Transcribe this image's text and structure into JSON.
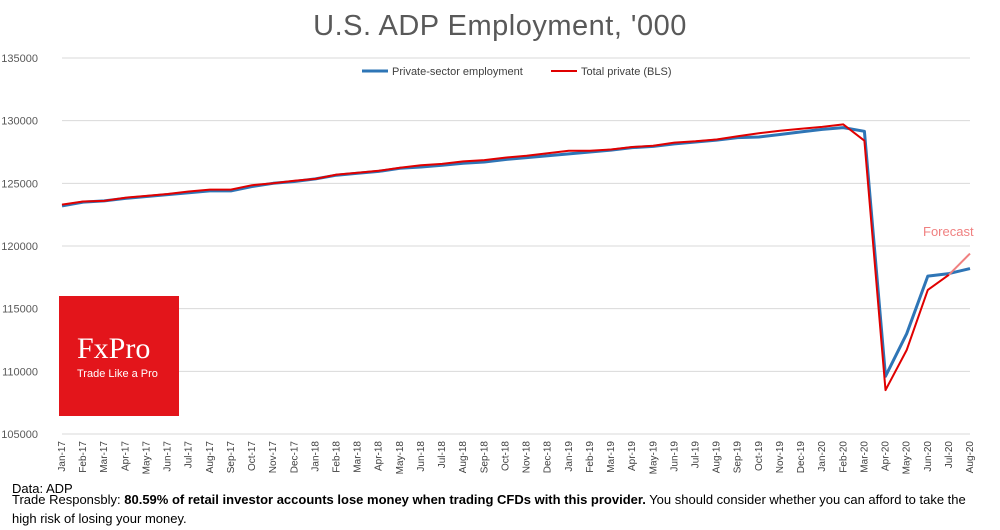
{
  "chart_data": {
    "type": "line",
    "title": "U.S. ADP Employment, '000",
    "categories": [
      "Jan-17",
      "Feb-17",
      "Mar-17",
      "Apr-17",
      "May-17",
      "Jun-17",
      "Jul-17",
      "Aug-17",
      "Sep-17",
      "Oct-17",
      "Nov-17",
      "Dec-17",
      "Jan-18",
      "Feb-18",
      "Mar-18",
      "Apr-18",
      "May-18",
      "Jun-18",
      "Jul-18",
      "Aug-18",
      "Sep-18",
      "Oct-18",
      "Nov-18",
      "Dec-18",
      "Jan-19",
      "Feb-19",
      "Mar-19",
      "Apr-19",
      "May-19",
      "Jun-19",
      "Jul-19",
      "Aug-19",
      "Sep-19",
      "Oct-19",
      "Nov-19",
      "Dec-19",
      "Jan-20",
      "Feb-20",
      "Mar-20",
      "Apr-20",
      "May-20",
      "Jun-20",
      "Jul-20",
      "Aug-20"
    ],
    "ylim": [
      105000,
      135000
    ],
    "yticks": [
      "105000",
      "110000",
      "115000",
      "120000",
      "125000",
      "130000",
      "135000"
    ],
    "grid": true,
    "legend_position": "top",
    "series": [
      {
        "name": "Private-sector employment",
        "color": "#2e75b6",
        "values": [
          123200,
          123500,
          123600,
          123800,
          123950,
          124100,
          124250,
          124400,
          124400,
          124750,
          125000,
          125150,
          125350,
          125650,
          125800,
          125950,
          126200,
          126300,
          126450,
          126600,
          126700,
          126900,
          127050,
          127200,
          127350,
          127500,
          127650,
          127850,
          127950,
          128150,
          128300,
          128450,
          128650,
          128700,
          128900,
          129100,
          129300,
          129450,
          129150,
          109600,
          113000,
          117600,
          117800,
          118200
        ]
      },
      {
        "name": "Total private (BLS)",
        "color": "#e00000",
        "values": [
          123300,
          123550,
          123600,
          123850,
          124000,
          124150,
          124350,
          124500,
          124500,
          124850,
          125000,
          125200,
          125350,
          125700,
          125850,
          126000,
          126250,
          126450,
          126550,
          126750,
          126850,
          127050,
          127200,
          127400,
          127600,
          127600,
          127700,
          127900,
          128000,
          128250,
          128350,
          128500,
          128750,
          129000,
          129200,
          129350,
          129500,
          129700,
          128400,
          108500,
          111700,
          116500,
          117700,
          null
        ]
      }
    ],
    "forecast": {
      "color": "#f08080",
      "from_index": 42,
      "to_index": 43,
      "values": [
        117700,
        119400
      ]
    },
    "annotations": [
      {
        "text": "Forecast"
      }
    ]
  },
  "logo": {
    "name": "FxPro",
    "tagline": "Trade Like a Pro",
    "color": "#e3151b"
  },
  "source": "Data: ADP",
  "disclaimer": {
    "prefix": "Trade Responsbly: ",
    "bold": "80.59% of retail investor accounts lose money when trading CFDs with this provider.",
    "suffix": " You should consider whether you can afford to take the high risk of losing your money."
  }
}
